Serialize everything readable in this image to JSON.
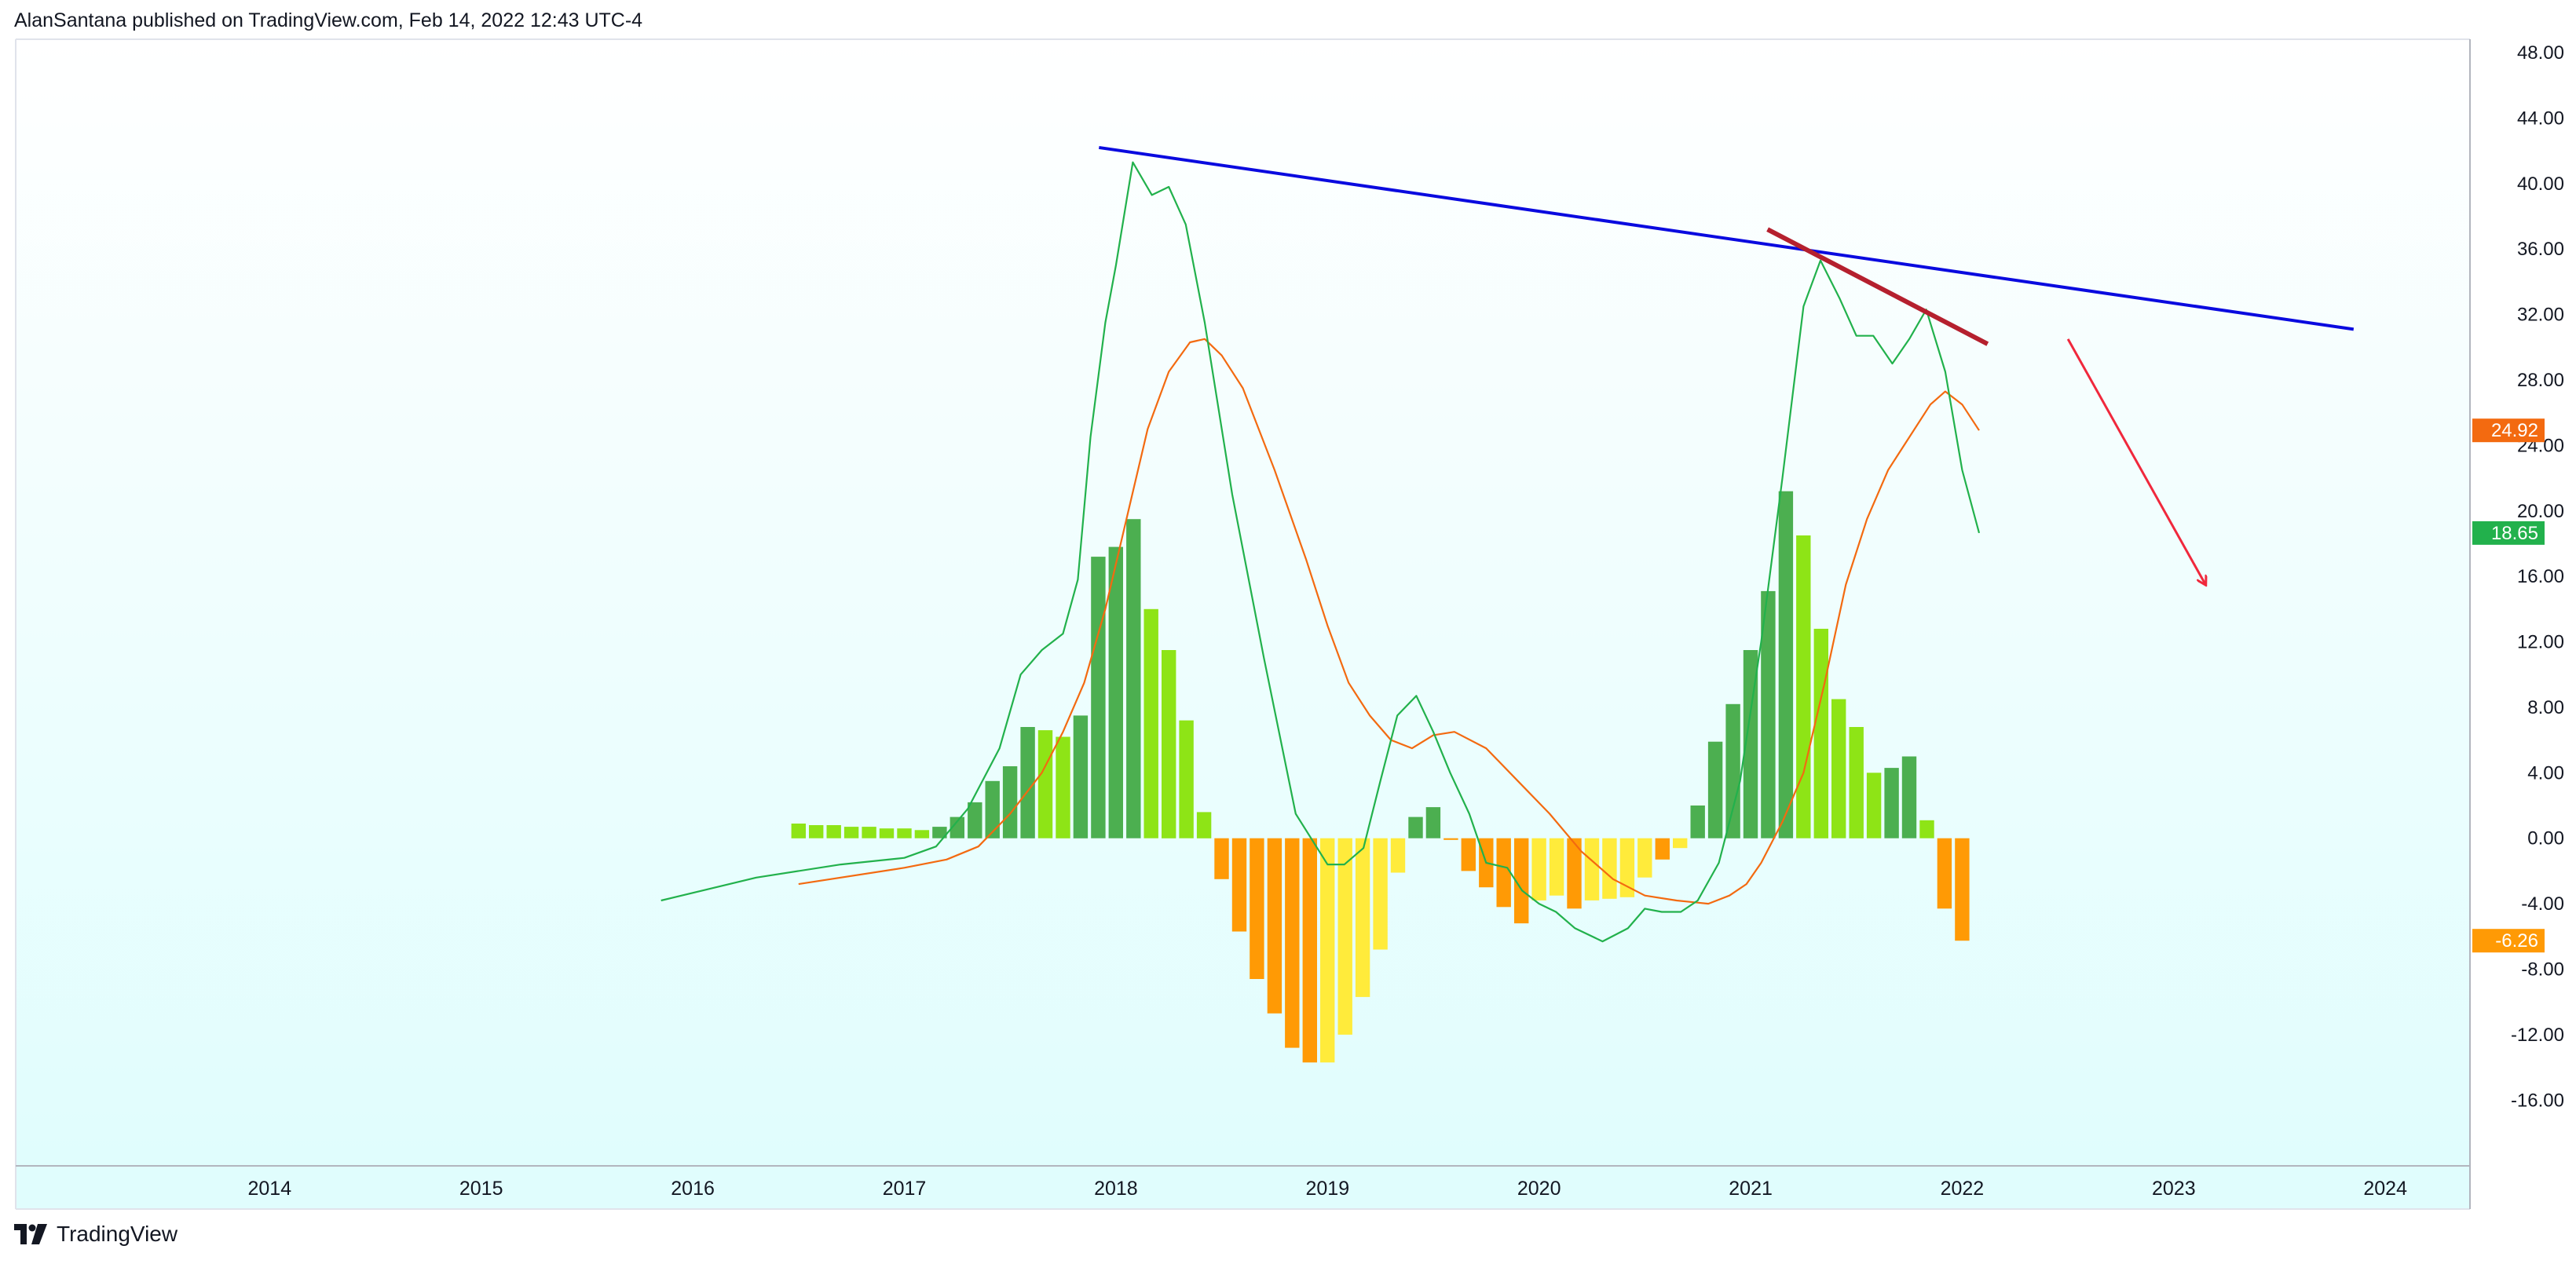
{
  "header": {
    "publisher_line": "AlanSantana published on TradingView.com, Feb 14, 2022 12:43 UTC-4"
  },
  "footer": {
    "brand_name": "TradingView",
    "logo_icon": "tradingview-logo-icon"
  },
  "colors": {
    "plot_bg_top": "#ffffff",
    "plot_bg_bottom": "#e0fdfd",
    "macd_line": "#22b14c",
    "signal_line": "#f36a10",
    "hist_up_strong": "#4caf50",
    "hist_up_weak": "#8ee416",
    "hist_down_strong": "#ff9a05",
    "hist_down_weak": "#ffeb3b",
    "blue_trendline": "#0a0adf",
    "red_trendline": "#b5202e",
    "arrow": "#f0283c",
    "badge_signal": "#f36a10",
    "badge_macd": "#22b14c",
    "badge_hist": "#ff9a05"
  },
  "chart_data": {
    "type": "macd-indicator",
    "y_axis": {
      "ylim": [
        -18,
        48
      ],
      "ticks": [
        "48.00",
        "44.00",
        "40.00",
        "36.00",
        "32.00",
        "28.00",
        "24.00",
        "20.00",
        "16.00",
        "12.00",
        "8.00",
        "4.00",
        "0.00",
        "-4.00",
        "-8.00",
        "-12.00",
        "-16.00"
      ],
      "tick_values": [
        48,
        44,
        40,
        36,
        32,
        28,
        24,
        20,
        16,
        12,
        8,
        4,
        0,
        -4,
        -8,
        -12,
        -16
      ]
    },
    "x_axis": {
      "xlim": [
        2012.8,
        2024.4
      ],
      "ticks": [
        "2014",
        "2015",
        "2016",
        "2017",
        "2018",
        "2019",
        "2020",
        "2021",
        "2022",
        "2023",
        "2024"
      ],
      "tick_values": [
        2014,
        2015,
        2016,
        2017,
        2018,
        2019,
        2020,
        2021,
        2022,
        2023,
        2024
      ]
    },
    "last_value_badges": [
      {
        "label": "24.92",
        "value": 24.92,
        "color_key": "badge_signal"
      },
      {
        "label": "18.65",
        "value": 18.65,
        "color_key": "badge_macd"
      },
      {
        "label": "-6.26",
        "value": -6.26,
        "color_key": "badge_hist"
      }
    ],
    "histogram": {
      "start": 2016.5,
      "step": 0.08333,
      "bars": [
        {
          "v": 0.9,
          "c": "hist_up_weak"
        },
        {
          "v": 0.8,
          "c": "hist_up_weak"
        },
        {
          "v": 0.8,
          "c": "hist_up_weak"
        },
        {
          "v": 0.7,
          "c": "hist_up_weak"
        },
        {
          "v": 0.7,
          "c": "hist_up_weak"
        },
        {
          "v": 0.6,
          "c": "hist_up_weak"
        },
        {
          "v": 0.6,
          "c": "hist_up_weak"
        },
        {
          "v": 0.5,
          "c": "hist_up_weak"
        },
        {
          "v": 0.7,
          "c": "hist_up_strong"
        },
        {
          "v": 1.3,
          "c": "hist_up_strong"
        },
        {
          "v": 2.2,
          "c": "hist_up_strong"
        },
        {
          "v": 3.5,
          "c": "hist_up_strong"
        },
        {
          "v": 4.4,
          "c": "hist_up_strong"
        },
        {
          "v": 6.8,
          "c": "hist_up_strong"
        },
        {
          "v": 6.6,
          "c": "hist_up_weak"
        },
        {
          "v": 6.2,
          "c": "hist_up_weak"
        },
        {
          "v": 7.5,
          "c": "hist_up_strong"
        },
        {
          "v": 17.2,
          "c": "hist_up_strong"
        },
        {
          "v": 17.8,
          "c": "hist_up_strong"
        },
        {
          "v": 19.5,
          "c": "hist_up_strong"
        },
        {
          "v": 14.0,
          "c": "hist_up_weak"
        },
        {
          "v": 11.5,
          "c": "hist_up_weak"
        },
        {
          "v": 7.2,
          "c": "hist_up_weak"
        },
        {
          "v": 1.6,
          "c": "hist_up_weak"
        },
        {
          "v": -2.5,
          "c": "hist_down_strong"
        },
        {
          "v": -5.7,
          "c": "hist_down_strong"
        },
        {
          "v": -8.6,
          "c": "hist_down_strong"
        },
        {
          "v": -10.7,
          "c": "hist_down_strong"
        },
        {
          "v": -12.8,
          "c": "hist_down_strong"
        },
        {
          "v": -13.7,
          "c": "hist_down_strong"
        },
        {
          "v": -13.7,
          "c": "hist_down_weak"
        },
        {
          "v": -12.0,
          "c": "hist_down_weak"
        },
        {
          "v": -9.7,
          "c": "hist_down_weak"
        },
        {
          "v": -6.8,
          "c": "hist_down_weak"
        },
        {
          "v": -2.1,
          "c": "hist_down_weak"
        },
        {
          "v": 1.3,
          "c": "hist_up_strong"
        },
        {
          "v": 1.9,
          "c": "hist_up_strong"
        },
        {
          "v": -0.1,
          "c": "hist_down_strong"
        },
        {
          "v": -2.0,
          "c": "hist_down_strong"
        },
        {
          "v": -3.0,
          "c": "hist_down_strong"
        },
        {
          "v": -4.2,
          "c": "hist_down_strong"
        },
        {
          "v": -5.2,
          "c": "hist_down_strong"
        },
        {
          "v": -3.8,
          "c": "hist_down_weak"
        },
        {
          "v": -3.5,
          "c": "hist_down_weak"
        },
        {
          "v": -4.3,
          "c": "hist_down_strong"
        },
        {
          "v": -3.8,
          "c": "hist_down_weak"
        },
        {
          "v": -3.7,
          "c": "hist_down_weak"
        },
        {
          "v": -3.6,
          "c": "hist_down_weak"
        },
        {
          "v": -2.4,
          "c": "hist_down_weak"
        },
        {
          "v": -1.3,
          "c": "hist_down_strong"
        },
        {
          "v": -0.6,
          "c": "hist_down_weak"
        },
        {
          "v": 2.0,
          "c": "hist_up_strong"
        },
        {
          "v": 5.9,
          "c": "hist_up_strong"
        },
        {
          "v": 8.2,
          "c": "hist_up_strong"
        },
        {
          "v": 11.5,
          "c": "hist_up_strong"
        },
        {
          "v": 15.1,
          "c": "hist_up_strong"
        },
        {
          "v": 21.2,
          "c": "hist_up_strong"
        },
        {
          "v": 18.5,
          "c": "hist_up_weak"
        },
        {
          "v": 12.8,
          "c": "hist_up_weak"
        },
        {
          "v": 8.5,
          "c": "hist_up_weak"
        },
        {
          "v": 6.8,
          "c": "hist_up_weak"
        },
        {
          "v": 4.0,
          "c": "hist_up_weak"
        },
        {
          "v": 4.3,
          "c": "hist_up_strong"
        },
        {
          "v": 5.0,
          "c": "hist_up_strong"
        },
        {
          "v": 1.1,
          "c": "hist_up_weak"
        },
        {
          "v": -4.3,
          "c": "hist_down_strong"
        },
        {
          "v": -6.26,
          "c": "hist_down_strong"
        }
      ]
    },
    "macd_line": {
      "x": [
        2015.85,
        2016.3,
        2016.7,
        2017.0,
        2017.15,
        2017.3,
        2017.45,
        2017.55,
        2017.65,
        2017.75,
        2017.82,
        2017.88,
        2017.95,
        2018.0,
        2018.08,
        2018.17,
        2018.25,
        2018.33,
        2018.42,
        2018.55,
        2018.7,
        2018.85,
        2019.0,
        2019.08,
        2019.17,
        2019.25,
        2019.33,
        2019.42,
        2019.5,
        2019.58,
        2019.67,
        2019.75,
        2019.85,
        2019.92,
        2020.0,
        2020.08,
        2020.17,
        2020.3,
        2020.42,
        2020.5,
        2020.58,
        2020.67,
        2020.75,
        2020.85,
        2020.95,
        2021.05,
        2021.15,
        2021.25,
        2021.33,
        2021.42,
        2021.5,
        2021.58,
        2021.67,
        2021.75,
        2021.83,
        2021.92,
        2022.0,
        2022.08
      ],
      "y": [
        -3.8,
        -2.4,
        -1.6,
        -1.2,
        -0.5,
        1.8,
        5.5,
        10.0,
        11.5,
        12.5,
        15.8,
        24.5,
        31.5,
        35.0,
        41.3,
        39.3,
        39.8,
        37.5,
        31.5,
        21.0,
        11.0,
        1.5,
        -1.6,
        -1.6,
        -0.6,
        3.5,
        7.5,
        8.7,
        6.5,
        4.0,
        1.5,
        -1.5,
        -1.8,
        -3.2,
        -4.0,
        -4.5,
        -5.5,
        -6.3,
        -5.5,
        -4.3,
        -4.5,
        -4.5,
        -3.8,
        -1.5,
        3.5,
        12.0,
        22.0,
        32.5,
        35.3,
        33.0,
        30.7,
        30.7,
        29.0,
        30.5,
        32.3,
        28.5,
        22.5,
        18.65
      ]
    },
    "signal_line": {
      "x": [
        2016.5,
        2017.0,
        2017.2,
        2017.35,
        2017.5,
        2017.65,
        2017.75,
        2017.85,
        2017.95,
        2018.05,
        2018.15,
        2018.25,
        2018.35,
        2018.42,
        2018.5,
        2018.6,
        2018.75,
        2018.9,
        2019.0,
        2019.1,
        2019.2,
        2019.3,
        2019.4,
        2019.5,
        2019.6,
        2019.75,
        2019.9,
        2020.05,
        2020.2,
        2020.35,
        2020.5,
        2020.65,
        2020.8,
        2020.9,
        2020.98,
        2021.05,
        2021.15,
        2021.25,
        2021.35,
        2021.45,
        2021.55,
        2021.65,
        2021.75,
        2021.85,
        2021.92,
        2022.0,
        2022.08
      ],
      "y": [
        -2.8,
        -1.8,
        -1.3,
        -0.5,
        1.5,
        4.0,
        6.5,
        9.5,
        14.0,
        19.5,
        25.0,
        28.5,
        30.3,
        30.5,
        29.5,
        27.5,
        22.5,
        17.0,
        13.0,
        9.5,
        7.5,
        6.0,
        5.5,
        6.3,
        6.5,
        5.5,
        3.5,
        1.5,
        -0.8,
        -2.5,
        -3.5,
        -3.8,
        -4.0,
        -3.5,
        -2.8,
        -1.5,
        1.0,
        4.0,
        9.5,
        15.5,
        19.5,
        22.5,
        24.5,
        26.5,
        27.3,
        26.5,
        24.92
      ]
    },
    "annotations": {
      "blue_trendline": {
        "x1": 2017.92,
        "y1": 42.2,
        "x2": 2023.85,
        "y2": 31.1
      },
      "red_trendline": {
        "x1": 2021.08,
        "y1": 37.2,
        "x2": 2022.12,
        "y2": 30.2
      },
      "arrow": {
        "x1": 2022.5,
        "y1": 30.5,
        "x2": 2023.15,
        "y2": 15.5
      }
    }
  }
}
